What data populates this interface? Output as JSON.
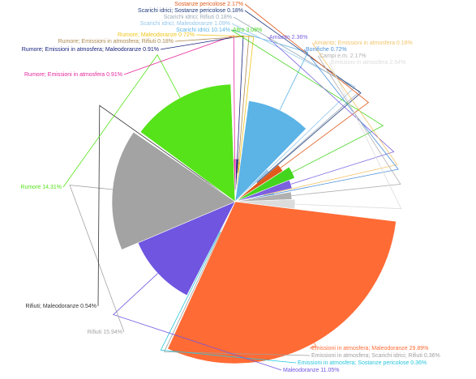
{
  "chart_data": {
    "type": "pie",
    "title": "",
    "subtitle": "",
    "label_format": "{name} {value}%",
    "slices": [
      {
        "name": "Emissioni in atmosfera; Maleodoranze",
        "value": 29.89,
        "color": "#ff6b35"
      },
      {
        "name": "Emissioni in atmosfera; Scarichi idrici; Rifiuti",
        "value": 0.36,
        "color": "#9e9e9e"
      },
      {
        "name": "Emissioni in atmosfera; Sostanze pericolose",
        "value": 0.36,
        "color": "#26c6da"
      },
      {
        "name": "Maleodoranze",
        "value": 11.05,
        "color": "#6f55e0"
      },
      {
        "name": "Rifiuti",
        "value": 15.94,
        "color": "#a3a3a3"
      },
      {
        "name": "Rifiuti; Maleodoranze",
        "value": 0.54,
        "color": "#333333"
      },
      {
        "name": "Rumore",
        "value": 14.31,
        "color": "#56e31a"
      },
      {
        "name": "Rumore; Emissioni in atmosfera",
        "value": 0.91,
        "color": "#e6289c"
      },
      {
        "name": "Rumore; Emissioni in atmosfera; Maleodoranze",
        "value": 0.91,
        "color": "#1a237e"
      },
      {
        "name": "Rumore; Emissioni in atmosfera; Rifiuti",
        "value": 0.18,
        "color": "#ad8a52"
      },
      {
        "name": "Rumore; Maleodoranze",
        "value": 0.72,
        "color": "#f0c419"
      },
      {
        "name": "Scarichi idrici",
        "value": 10.14,
        "color": "#5cb3e6"
      },
      {
        "name": "Scarichi idrici; Maleodoranze",
        "value": 1.09,
        "color": "#93c6ec"
      },
      {
        "name": "Scarichi idrici; Rifiuti",
        "value": 0.18,
        "color": "#9aaab8"
      },
      {
        "name": "Scarichi idrici; Sostanze pericolose",
        "value": 0.18,
        "color": "#1f3a7a"
      },
      {
        "name": "Sostanze pericolose",
        "value": 2.17,
        "color": "#e05a1c"
      },
      {
        "name": "Altro",
        "value": 3.08,
        "color": "#44d61e"
      },
      {
        "name": "Amianto",
        "value": 2.36,
        "color": "#7b61e0"
      },
      {
        "name": "Amianto; Emissioni in atmosfera",
        "value": 0.18,
        "color": "#f2c46b"
      },
      {
        "name": "Bonifiche",
        "value": 0.72,
        "color": "#4a90d9"
      },
      {
        "name": "Campi e.m.",
        "value": 2.17,
        "color": "#b0b0b0"
      },
      {
        "name": "Emissioni in atmosfera",
        "value": 2.54,
        "color": "#dcdcdc"
      }
    ]
  }
}
